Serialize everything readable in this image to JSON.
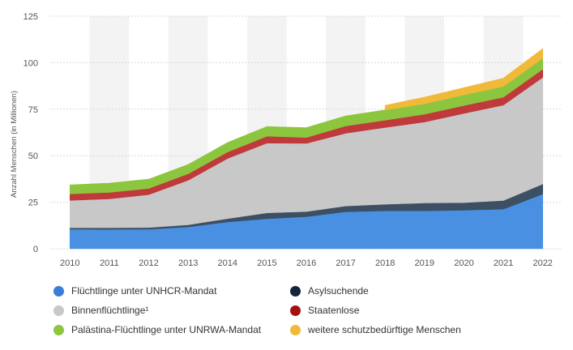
{
  "chart_data": {
    "type": "area",
    "stacked": true,
    "title": "",
    "xlabel": "",
    "ylabel": "Anzahl Menschen (in Millionen)",
    "ylim": [
      0,
      125
    ],
    "yticks": [
      0,
      25,
      50,
      75,
      100,
      125
    ],
    "grid": true,
    "legend_position": "bottom",
    "x": [
      "2010",
      "2011",
      "2012",
      "2013",
      "2014",
      "2015",
      "2016",
      "2017",
      "2018",
      "2019",
      "2020",
      "2021",
      "2022"
    ],
    "series": [
      {
        "name": "Flüchtlinge unter UNHCR-Mandat",
        "color": "#4a90e2",
        "values": [
          10.5,
          10.4,
          10.5,
          11.7,
          14.4,
          16.1,
          17.2,
          19.9,
          20.4,
          20.4,
          20.7,
          21.3,
          29.4
        ]
      },
      {
        "name": "Asylsuchende",
        "color": "#3c4f63",
        "values": [
          0.8,
          0.9,
          0.9,
          1.2,
          1.8,
          3.2,
          2.8,
          3.1,
          3.5,
          4.2,
          4.1,
          4.6,
          5.4
        ]
      },
      {
        "name": "Binnenflüchtlinge¹",
        "color": "#c8c8c8",
        "values": [
          14.7,
          15.5,
          17.7,
          23.9,
          32.3,
          37.5,
          36.6,
          39.1,
          41.3,
          43.5,
          48.0,
          51.3,
          57.3
        ]
      },
      {
        "name": "Staatenlose",
        "color": "#c0393b",
        "values": [
          3.5,
          3.5,
          3.3,
          3.5,
          3.5,
          3.7,
          3.2,
          3.9,
          3.9,
          4.2,
          4.2,
          4.3,
          4.4
        ]
      },
      {
        "name": "Palästina-Flüchtlinge unter UNRWA-Mandat",
        "color": "#8cc63f",
        "values": [
          4.8,
          5.0,
          5.0,
          5.0,
          5.1,
          5.2,
          5.3,
          5.4,
          5.5,
          5.6,
          5.7,
          5.8,
          5.9
        ]
      },
      {
        "name": "weitere schutzbedürftige Menschen",
        "color": "#f0b93a",
        "values": [
          null,
          null,
          null,
          null,
          null,
          null,
          null,
          null,
          2.5,
          3.6,
          3.9,
          4.4,
          5.2
        ]
      }
    ]
  },
  "legend": {
    "items": [
      {
        "label": "Flüchtlinge unter UNHCR-Mandat",
        "color": "#3a7ddc"
      },
      {
        "label": "Asylsuchende",
        "color": "#13253d"
      },
      {
        "label": "Binnenflüchtlinge¹",
        "color": "#c8c8c8"
      },
      {
        "label": "Staatenlose",
        "color": "#a50f0f"
      },
      {
        "label": "Palästina-Flüchtlinge unter UNRWA-Mandat",
        "color": "#8cc63f"
      },
      {
        "label": "weitere schutzbedürftige Menschen",
        "color": "#f0b93a"
      }
    ]
  }
}
